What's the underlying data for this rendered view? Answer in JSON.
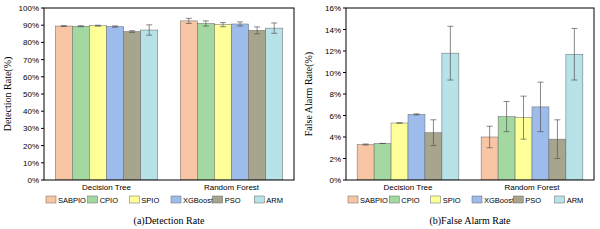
{
  "chart_data": [
    {
      "type": "bar",
      "title": "(a)Detection Rate",
      "y_label": "Detection Rate(%)",
      "categories": [
        "Decision Tree",
        "Random Forest"
      ],
      "series": [
        {
          "name": "SABPIO",
          "color": "#F8C6A4",
          "values": [
            89.5,
            92.5
          ],
          "errors": [
            0.3,
            1.5
          ]
        },
        {
          "name": "CPIO",
          "color": "#A3D9A0",
          "values": [
            89.4,
            91.0
          ],
          "errors": [
            0.3,
            1.5
          ]
        },
        {
          "name": "SPIO",
          "color": "#FFFF99",
          "values": [
            89.7,
            90.3
          ],
          "errors": [
            0.3,
            1.2
          ]
        },
        {
          "name": "XGBoost",
          "color": "#9DBCEC",
          "values": [
            89.2,
            90.7
          ],
          "errors": [
            0.4,
            1.2
          ]
        },
        {
          "name": "PSO",
          "color": "#A8A58E",
          "values": [
            86.3,
            87.0
          ],
          "errors": [
            0.5,
            2.0
          ]
        },
        {
          "name": "ARM",
          "color": "#B6E2E8",
          "values": [
            87.2,
            88.3
          ],
          "errors": [
            3.0,
            3.0
          ]
        }
      ],
      "ylim": [
        0,
        100
      ],
      "yticks": [
        {
          "value": 0,
          "label": "0%"
        },
        {
          "value": 10,
          "label": "10%"
        },
        {
          "value": 20,
          "label": "20%"
        },
        {
          "value": 30,
          "label": "30%"
        },
        {
          "value": 40,
          "label": "40%"
        },
        {
          "value": 50,
          "label": "50%"
        },
        {
          "value": 60,
          "label": "60%"
        },
        {
          "value": 70,
          "label": "70%"
        },
        {
          "value": 80,
          "label": "80%"
        },
        {
          "value": 90,
          "label": "90%"
        },
        {
          "value": 100,
          "label": "100%"
        }
      ],
      "grid": false,
      "legend": "bottom"
    },
    {
      "type": "bar",
      "title": "(b)False Alarm Rate",
      "y_label": "False Alarm Rate(%)",
      "categories": [
        "Decision Tree",
        "Random Forest"
      ],
      "series": [
        {
          "name": "SABPIO",
          "color": "#F8C6A4",
          "values": [
            3.3,
            4.0
          ],
          "errors": [
            0.05,
            1.0
          ]
        },
        {
          "name": "CPIO",
          "color": "#A3D9A0",
          "values": [
            3.4,
            5.9
          ],
          "errors": [
            0.0,
            1.4
          ]
        },
        {
          "name": "SPIO",
          "color": "#FFFF99",
          "values": [
            5.3,
            5.8
          ],
          "errors": [
            0.0,
            2.0
          ]
        },
        {
          "name": "XGBoost",
          "color": "#9DBCEC",
          "values": [
            6.1,
            6.8
          ],
          "errors": [
            0.05,
            2.3
          ]
        },
        {
          "name": "PSO",
          "color": "#A8A58E",
          "values": [
            4.4,
            3.8
          ],
          "errors": [
            1.2,
            1.8
          ]
        },
        {
          "name": "ARM",
          "color": "#B6E2E8",
          "values": [
            11.8,
            11.7
          ],
          "errors": [
            2.5,
            2.4
          ]
        }
      ],
      "ylim": [
        0,
        16
      ],
      "yticks": [
        {
          "value": 0,
          "label": "0%"
        },
        {
          "value": 2,
          "label": "2%"
        },
        {
          "value": 4,
          "label": "4%"
        },
        {
          "value": 6,
          "label": "6%"
        },
        {
          "value": 8,
          "label": "8%"
        },
        {
          "value": 10,
          "label": "10%"
        },
        {
          "value": 12,
          "label": "12%"
        },
        {
          "value": 14,
          "label": "14%"
        },
        {
          "value": 16,
          "label": "16%"
        }
      ],
      "grid": false,
      "legend": "bottom"
    }
  ]
}
